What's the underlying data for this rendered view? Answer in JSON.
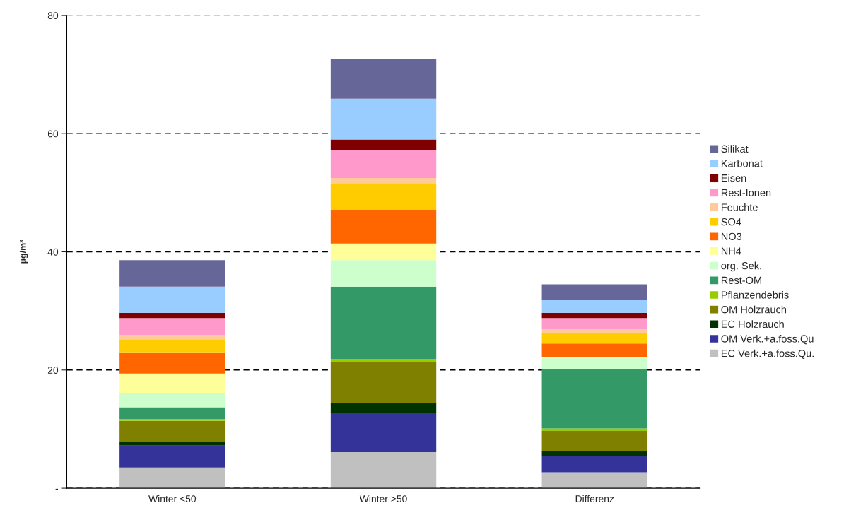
{
  "chart_data": {
    "type": "bar",
    "stacked": true,
    "ylabel": "µg/m³",
    "categories": [
      "Winter <50",
      "Winter >50",
      "Differenz"
    ],
    "ylim": [
      0,
      80
    ],
    "yticks": [
      {
        "value": 0,
        "label": "-"
      },
      20,
      40,
      60,
      80
    ],
    "grid": "y",
    "legend": "right",
    "series": [
      {
        "name": "EC Verk.+a.foss.Qu.",
        "color": "#c0c0c0",
        "values": [
          3.5,
          6.1,
          2.7
        ]
      },
      {
        "name": "OM Verk.+a.foss.Qu",
        "color": "#333399",
        "values": [
          3.7,
          6.6,
          2.7
        ]
      },
      {
        "name": "EC Holzrauch",
        "color": "#003300",
        "values": [
          0.7,
          1.7,
          0.9
        ]
      },
      {
        "name": "OM Holzrauch",
        "color": "#808000",
        "values": [
          3.5,
          6.9,
          3.4
        ]
      },
      {
        "name": "Pflanzendebris",
        "color": "#99cc00",
        "values": [
          0.3,
          0.6,
          0.4
        ]
      },
      {
        "name": "Rest-OM",
        "color": "#339966",
        "values": [
          2.0,
          12.2,
          10.1
        ]
      },
      {
        "name": "org. Sek.",
        "color": "#ccffcc",
        "values": [
          2.4,
          4.5,
          1.8
        ]
      },
      {
        "name": "NH4",
        "color": "#ffff99",
        "values": [
          3.3,
          2.8,
          0.2
        ]
      },
      {
        "name": "NO3",
        "color": "#ff6600",
        "values": [
          3.6,
          5.7,
          2.3
        ]
      },
      {
        "name": "SO4",
        "color": "#ffcc00",
        "values": [
          2.2,
          4.4,
          1.8
        ]
      },
      {
        "name": "Feuchte",
        "color": "#ffcc99",
        "values": [
          0.7,
          1.0,
          0.6
        ]
      },
      {
        "name": "Rest-Ionen",
        "color": "#ff99cc",
        "values": [
          2.9,
          4.7,
          1.9
        ]
      },
      {
        "name": "Eisen",
        "color": "#800000",
        "values": [
          0.9,
          1.8,
          0.9
        ]
      },
      {
        "name": "Karbonat",
        "color": "#99ccff",
        "values": [
          4.4,
          6.9,
          2.2
        ]
      },
      {
        "name": "Silikat",
        "color": "#666699",
        "values": [
          4.5,
          6.7,
          2.6
        ]
      }
    ]
  }
}
